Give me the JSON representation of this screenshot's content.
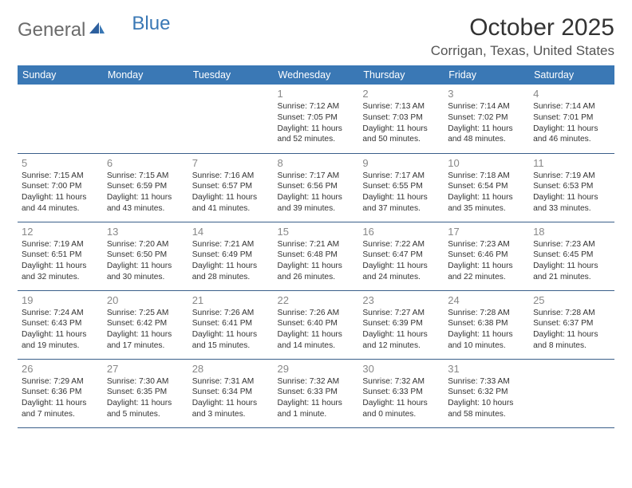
{
  "logo": {
    "general": "General",
    "blue": "Blue"
  },
  "title": "October 2025",
  "location": "Corrigan, Texas, United States",
  "colors": {
    "header_bg": "#3a78b5",
    "header_text": "#ffffff",
    "row_border": "#3a5f8a",
    "daynum": "#888888",
    "text": "#333333",
    "logo_gray": "#6b6b6b",
    "logo_blue": "#3a78b5",
    "bg": "#ffffff"
  },
  "weekdays": [
    "Sunday",
    "Monday",
    "Tuesday",
    "Wednesday",
    "Thursday",
    "Friday",
    "Saturday"
  ],
  "weeks": [
    [
      null,
      null,
      null,
      {
        "d": "1",
        "sr": "7:12 AM",
        "ss": "7:05 PM",
        "dl": "11 hours and 52 minutes."
      },
      {
        "d": "2",
        "sr": "7:13 AM",
        "ss": "7:03 PM",
        "dl": "11 hours and 50 minutes."
      },
      {
        "d": "3",
        "sr": "7:14 AM",
        "ss": "7:02 PM",
        "dl": "11 hours and 48 minutes."
      },
      {
        "d": "4",
        "sr": "7:14 AM",
        "ss": "7:01 PM",
        "dl": "11 hours and 46 minutes."
      }
    ],
    [
      {
        "d": "5",
        "sr": "7:15 AM",
        "ss": "7:00 PM",
        "dl": "11 hours and 44 minutes."
      },
      {
        "d": "6",
        "sr": "7:15 AM",
        "ss": "6:59 PM",
        "dl": "11 hours and 43 minutes."
      },
      {
        "d": "7",
        "sr": "7:16 AM",
        "ss": "6:57 PM",
        "dl": "11 hours and 41 minutes."
      },
      {
        "d": "8",
        "sr": "7:17 AM",
        "ss": "6:56 PM",
        "dl": "11 hours and 39 minutes."
      },
      {
        "d": "9",
        "sr": "7:17 AM",
        "ss": "6:55 PM",
        "dl": "11 hours and 37 minutes."
      },
      {
        "d": "10",
        "sr": "7:18 AM",
        "ss": "6:54 PM",
        "dl": "11 hours and 35 minutes."
      },
      {
        "d": "11",
        "sr": "7:19 AM",
        "ss": "6:53 PM",
        "dl": "11 hours and 33 minutes."
      }
    ],
    [
      {
        "d": "12",
        "sr": "7:19 AM",
        "ss": "6:51 PM",
        "dl": "11 hours and 32 minutes."
      },
      {
        "d": "13",
        "sr": "7:20 AM",
        "ss": "6:50 PM",
        "dl": "11 hours and 30 minutes."
      },
      {
        "d": "14",
        "sr": "7:21 AM",
        "ss": "6:49 PM",
        "dl": "11 hours and 28 minutes."
      },
      {
        "d": "15",
        "sr": "7:21 AM",
        "ss": "6:48 PM",
        "dl": "11 hours and 26 minutes."
      },
      {
        "d": "16",
        "sr": "7:22 AM",
        "ss": "6:47 PM",
        "dl": "11 hours and 24 minutes."
      },
      {
        "d": "17",
        "sr": "7:23 AM",
        "ss": "6:46 PM",
        "dl": "11 hours and 22 minutes."
      },
      {
        "d": "18",
        "sr": "7:23 AM",
        "ss": "6:45 PM",
        "dl": "11 hours and 21 minutes."
      }
    ],
    [
      {
        "d": "19",
        "sr": "7:24 AM",
        "ss": "6:43 PM",
        "dl": "11 hours and 19 minutes."
      },
      {
        "d": "20",
        "sr": "7:25 AM",
        "ss": "6:42 PM",
        "dl": "11 hours and 17 minutes."
      },
      {
        "d": "21",
        "sr": "7:26 AM",
        "ss": "6:41 PM",
        "dl": "11 hours and 15 minutes."
      },
      {
        "d": "22",
        "sr": "7:26 AM",
        "ss": "6:40 PM",
        "dl": "11 hours and 14 minutes."
      },
      {
        "d": "23",
        "sr": "7:27 AM",
        "ss": "6:39 PM",
        "dl": "11 hours and 12 minutes."
      },
      {
        "d": "24",
        "sr": "7:28 AM",
        "ss": "6:38 PM",
        "dl": "11 hours and 10 minutes."
      },
      {
        "d": "25",
        "sr": "7:28 AM",
        "ss": "6:37 PM",
        "dl": "11 hours and 8 minutes."
      }
    ],
    [
      {
        "d": "26",
        "sr": "7:29 AM",
        "ss": "6:36 PM",
        "dl": "11 hours and 7 minutes."
      },
      {
        "d": "27",
        "sr": "7:30 AM",
        "ss": "6:35 PM",
        "dl": "11 hours and 5 minutes."
      },
      {
        "d": "28",
        "sr": "7:31 AM",
        "ss": "6:34 PM",
        "dl": "11 hours and 3 minutes."
      },
      {
        "d": "29",
        "sr": "7:32 AM",
        "ss": "6:33 PM",
        "dl": "11 hours and 1 minute."
      },
      {
        "d": "30",
        "sr": "7:32 AM",
        "ss": "6:33 PM",
        "dl": "11 hours and 0 minutes."
      },
      {
        "d": "31",
        "sr": "7:33 AM",
        "ss": "6:32 PM",
        "dl": "10 hours and 58 minutes."
      },
      null
    ]
  ],
  "labels": {
    "sunrise": "Sunrise:",
    "sunset": "Sunset:",
    "daylight": "Daylight:"
  }
}
